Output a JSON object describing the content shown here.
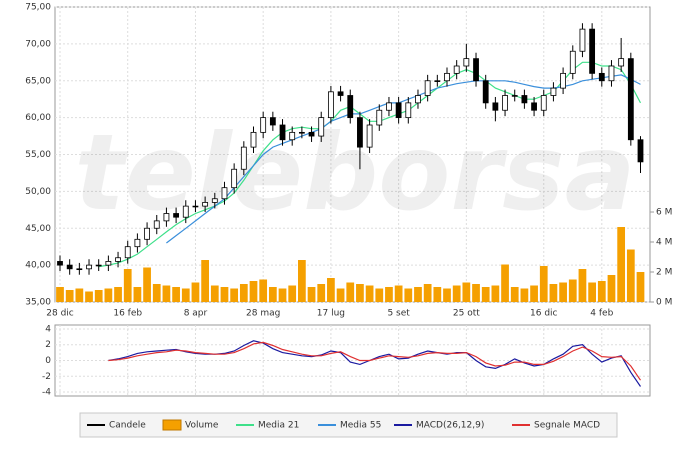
{
  "chart_data": [
    {
      "type": "candlestick",
      "watermark": "teleborsa",
      "categories": [
        "28 dic",
        null,
        null,
        null,
        null,
        null,
        null,
        "16 feb",
        null,
        null,
        null,
        null,
        null,
        null,
        "8 apr",
        null,
        null,
        null,
        null,
        null,
        null,
        "28 mag",
        null,
        null,
        null,
        null,
        null,
        null,
        "17 lug",
        null,
        null,
        null,
        null,
        null,
        null,
        "5 set",
        null,
        null,
        null,
        null,
        null,
        null,
        "25 ott",
        null,
        null,
        null,
        null,
        null,
        null,
        null,
        "16 dic",
        null,
        null,
        null,
        null,
        null,
        "4 feb",
        null,
        null,
        null,
        null
      ],
      "ylim": [
        35,
        75
      ],
      "yticks": [
        {
          "value": 35,
          "label": "35,00"
        },
        {
          "value": 40,
          "label": "40,00"
        },
        {
          "value": 45,
          "label": "45,00"
        },
        {
          "value": 50,
          "label": "50,00"
        },
        {
          "value": 55,
          "label": "55,00"
        },
        {
          "value": 60,
          "label": "60,00"
        },
        {
          "value": 65,
          "label": "65,00"
        },
        {
          "value": 70,
          "label": "70,00"
        },
        {
          "value": 75,
          "label": "75,00"
        }
      ],
      "y2lim": [
        0,
        19.67
      ],
      "y2ticks": [
        {
          "value": 0,
          "label": "0 M"
        },
        {
          "value": 2,
          "label": "2 M"
        },
        {
          "value": 4,
          "label": "4 M"
        },
        {
          "value": 6,
          "label": "6 M"
        }
      ],
      "grid": true,
      "series": [
        {
          "name": "Candele",
          "color": "#000000",
          "open": [
            40.5,
            40,
            39.5,
            39.5,
            40,
            40,
            40.5,
            41,
            42.5,
            43.5,
            45,
            46,
            47,
            46.5,
            48,
            48,
            48.5,
            49,
            50.5,
            53,
            56,
            58,
            60,
            59,
            57,
            58,
            58,
            57.5,
            60,
            63.5,
            63,
            60,
            56,
            59,
            61,
            62,
            60,
            62,
            63,
            65,
            65,
            66,
            67,
            68,
            65,
            62,
            61,
            63,
            63,
            62,
            61,
            63,
            64,
            66,
            69,
            72,
            66,
            65,
            67,
            68,
            57
          ],
          "high": [
            41.3,
            40.8,
            40.3,
            40.8,
            40.8,
            41.3,
            41.8,
            43.3,
            44.3,
            45.8,
            46.8,
            47.8,
            47.8,
            48.8,
            48.8,
            49.3,
            49.8,
            51.3,
            53.8,
            56.8,
            58.8,
            60.8,
            60.8,
            59.8,
            58.8,
            58.8,
            58.8,
            60.8,
            64.3,
            64.3,
            63.8,
            60.8,
            59.8,
            61.8,
            62.8,
            62.8,
            62.8,
            63.8,
            65.8,
            65.8,
            66.8,
            67.8,
            70,
            68.8,
            65.8,
            62.8,
            63.8,
            63.8,
            63.8,
            62.8,
            63.8,
            64.8,
            66.8,
            69.8,
            72.8,
            72.8,
            66.8,
            67.8,
            70.8,
            68.8,
            57.5
          ],
          "low": [
            39.2,
            38.7,
            38.7,
            38.7,
            39.2,
            39.2,
            39.7,
            40.2,
            41.7,
            42.7,
            44.2,
            45.2,
            45.7,
            45.7,
            47.2,
            47.2,
            47.7,
            48.2,
            49.7,
            52.2,
            55.2,
            57.2,
            58.2,
            56.2,
            56.2,
            57.2,
            56.7,
            56.7,
            59.2,
            62.2,
            59.2,
            53,
            55.2,
            58.2,
            60.2,
            59.2,
            59.2,
            61.2,
            62.2,
            64.2,
            64.2,
            65.2,
            66.2,
            64.2,
            61.2,
            59.5,
            60.2,
            62.2,
            61.2,
            60.2,
            60.2,
            62.2,
            63.2,
            65.2,
            68.2,
            65.2,
            64.2,
            64.2,
            66.2,
            56.2,
            52.5
          ],
          "close": [
            40,
            39.5,
            39.5,
            40,
            40,
            40.5,
            41,
            42.5,
            43.5,
            45,
            46,
            47,
            46.5,
            48,
            48,
            48.5,
            49,
            50.5,
            53,
            56,
            58,
            60,
            59,
            57,
            58,
            58,
            57.5,
            60,
            63.5,
            63,
            60,
            56,
            59,
            61,
            62,
            60,
            62,
            63,
            65,
            65,
            66,
            67,
            68,
            65,
            62,
            61,
            63,
            63,
            62,
            61,
            63,
            64,
            66,
            69,
            72,
            66,
            65,
            67,
            68,
            57,
            54
          ]
        },
        {
          "name": "Volume",
          "color": "#f5a000",
          "axis": "y2",
          "values": [
            1.0,
            0.8,
            0.9,
            0.7,
            0.8,
            0.9,
            1.0,
            2.2,
            1.0,
            2.3,
            1.2,
            1.1,
            1.0,
            0.9,
            1.3,
            2.8,
            1.1,
            1.0,
            0.9,
            1.2,
            1.4,
            1.5,
            1.0,
            0.9,
            1.1,
            2.8,
            1.0,
            1.2,
            1.6,
            0.9,
            1.3,
            1.2,
            1.1,
            0.9,
            1.0,
            1.1,
            0.9,
            1.0,
            1.2,
            1.0,
            0.9,
            1.1,
            1.3,
            1.2,
            1.0,
            1.1,
            2.5,
            1.0,
            0.9,
            1.1,
            2.4,
            1.2,
            1.3,
            1.5,
            2.2,
            1.3,
            1.4,
            1.8,
            5.0,
            3.5,
            2.0
          ]
        },
        {
          "name": "Media 21",
          "color": "#3ee08a",
          "values": [
            null,
            null,
            null,
            null,
            39.8,
            40,
            40.3,
            40.8,
            41.5,
            42.5,
            43.5,
            44.5,
            45.5,
            46.3,
            47,
            47.5,
            48,
            48.7,
            49.8,
            51.5,
            53.5,
            55.5,
            57,
            58,
            58.5,
            58.7,
            58.5,
            58.5,
            59.5,
            61,
            61.5,
            60.5,
            59.5,
            59.5,
            60,
            60.5,
            61,
            62,
            63,
            64,
            65,
            66,
            66.5,
            66,
            65,
            64,
            63.5,
            63,
            62.5,
            62.5,
            63,
            63.5,
            65,
            66.5,
            67.5,
            67.5,
            67,
            67,
            66.5,
            64.5,
            62
          ]
        },
        {
          "name": "Media 55",
          "color": "#3a8fdb",
          "values": [
            null,
            null,
            null,
            null,
            null,
            null,
            null,
            null,
            null,
            null,
            null,
            43,
            44,
            45,
            46,
            47,
            48,
            49,
            50.5,
            52,
            53.5,
            55,
            56,
            56.5,
            57,
            57.5,
            58,
            58.5,
            59.5,
            60,
            60.5,
            60.5,
            61,
            61.5,
            62,
            62,
            62.5,
            63,
            63.5,
            64,
            64.3,
            64.6,
            64.8,
            65,
            65,
            65,
            65,
            64.8,
            64.5,
            64.2,
            64,
            64,
            64.2,
            64.5,
            65,
            65.2,
            65.4,
            65.6,
            65.8,
            65.2,
            64.5
          ]
        }
      ]
    },
    {
      "type": "line",
      "ylim": [
        -4.5,
        4.5
      ],
      "yticks": [
        -4,
        -2,
        0,
        2,
        4
      ],
      "grid": true,
      "series": [
        {
          "name": "MACD(26,12,9)",
          "color": "#1a1aa0",
          "values": [
            null,
            null,
            null,
            null,
            null,
            0,
            0.2,
            0.5,
            0.9,
            1.1,
            1.2,
            1.3,
            1.4,
            1.1,
            0.9,
            0.8,
            0.8,
            0.9,
            1.2,
            1.9,
            2.5,
            2.2,
            1.5,
            1.0,
            0.8,
            0.6,
            0.5,
            0.7,
            1.2,
            1.0,
            -0.2,
            -0.5,
            0,
            0.5,
            0.8,
            0.2,
            0.3,
            0.8,
            1.2,
            1.0,
            0.8,
            1.0,
            1.0,
            0,
            -0.8,
            -1.0,
            -0.5,
            0.2,
            -0.3,
            -0.7,
            -0.5,
            0.2,
            0.8,
            1.8,
            2.0,
            0.8,
            -0.2,
            0.3,
            0.6,
            -1.5,
            -3.3
          ]
        },
        {
          "name": "Segnale MACD",
          "color": "#e03030",
          "values": [
            null,
            null,
            null,
            null,
            null,
            0,
            0.1,
            0.3,
            0.6,
            0.8,
            1.0,
            1.1,
            1.3,
            1.2,
            1.0,
            0.9,
            0.8,
            0.8,
            1.0,
            1.5,
            2.1,
            2.3,
            1.9,
            1.4,
            1.1,
            0.8,
            0.6,
            0.6,
            0.9,
            1.1,
            0.5,
            0,
            0,
            0.3,
            0.6,
            0.5,
            0.4,
            0.6,
            0.9,
            1.0,
            0.9,
            0.9,
            1.0,
            0.5,
            -0.3,
            -0.7,
            -0.6,
            -0.2,
            -0.2,
            -0.5,
            -0.5,
            -0.1,
            0.5,
            1.2,
            1.7,
            1.2,
            0.5,
            0.4,
            0.5,
            -0.7,
            -2.5
          ]
        }
      ]
    }
  ]
}
